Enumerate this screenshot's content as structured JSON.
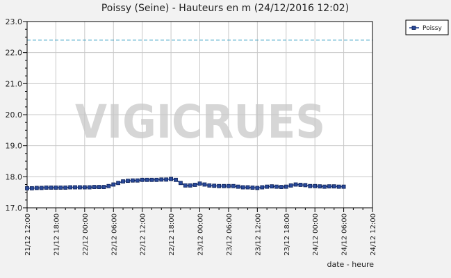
{
  "chart_data": {
    "type": "line",
    "title": "Poissy (Seine) - Hauteurs en m (24/12/2016 12:02)",
    "xlabel": "date - heure",
    "ylabel": "",
    "ylim": [
      17.0,
      23.0
    ],
    "yticks": [
      "17.0",
      "18.0",
      "19.0",
      "20.0",
      "21.0",
      "22.0",
      "23.0"
    ],
    "xlim": [
      "21/12 12:00",
      "24/12 12:00"
    ],
    "xticks": [
      "21/12 12:00",
      "21/12 18:00",
      "22/12 00:00",
      "22/12 06:00",
      "22/12 12:00",
      "22/12 18:00",
      "23/12 00:00",
      "23/12 06:00",
      "23/12 12:00",
      "23/12 18:00",
      "24/12 00:00",
      "24/12 06:00",
      "24/12 12:00"
    ],
    "grid": true,
    "legend_position": "top-right",
    "series": [
      {
        "name": "Poissy",
        "color": "#1a3a8a",
        "x": [
          "21/12 12:00",
          "21/12 13:00",
          "21/12 14:00",
          "21/12 15:00",
          "21/12 16:00",
          "21/12 17:00",
          "21/12 18:00",
          "21/12 19:00",
          "21/12 20:00",
          "21/12 21:00",
          "21/12 22:00",
          "21/12 23:00",
          "22/12 00:00",
          "22/12 01:00",
          "22/12 02:00",
          "22/12 03:00",
          "22/12 04:00",
          "22/12 05:00",
          "22/12 06:00",
          "22/12 07:00",
          "22/12 08:00",
          "22/12 09:00",
          "22/12 10:00",
          "22/12 11:00",
          "22/12 12:00",
          "22/12 13:00",
          "22/12 14:00",
          "22/12 15:00",
          "22/12 16:00",
          "22/12 17:00",
          "22/12 18:00",
          "22/12 19:00",
          "22/12 20:00",
          "22/12 21:00",
          "22/12 22:00",
          "22/12 23:00",
          "23/12 00:00",
          "23/12 01:00",
          "23/12 02:00",
          "23/12 03:00",
          "23/12 04:00",
          "23/12 05:00",
          "23/12 06:00",
          "23/12 07:00",
          "23/12 08:00",
          "23/12 09:00",
          "23/12 10:00",
          "23/12 11:00",
          "23/12 12:00",
          "23/12 13:00",
          "23/12 14:00",
          "23/12 15:00",
          "23/12 16:00",
          "23/12 17:00",
          "23/12 18:00",
          "23/12 19:00",
          "23/12 20:00",
          "23/12 21:00",
          "23/12 22:00",
          "23/12 23:00",
          "24/12 00:00",
          "24/12 01:00",
          "24/12 02:00",
          "24/12 03:00",
          "24/12 04:00",
          "24/12 05:00",
          "24/12 06:00"
        ],
        "values": [
          17.63,
          17.63,
          17.64,
          17.64,
          17.65,
          17.65,
          17.65,
          17.65,
          17.65,
          17.66,
          17.66,
          17.66,
          17.66,
          17.66,
          17.67,
          17.67,
          17.67,
          17.7,
          17.75,
          17.8,
          17.85,
          17.87,
          17.88,
          17.88,
          17.9,
          17.9,
          17.9,
          17.9,
          17.91,
          17.91,
          17.93,
          17.9,
          17.8,
          17.72,
          17.72,
          17.74,
          17.78,
          17.75,
          17.72,
          17.71,
          17.7,
          17.7,
          17.7,
          17.7,
          17.68,
          17.66,
          17.66,
          17.65,
          17.64,
          17.66,
          17.68,
          17.69,
          17.68,
          17.67,
          17.68,
          17.72,
          17.75,
          17.74,
          17.73,
          17.7,
          17.7,
          17.69,
          17.68,
          17.69,
          17.69,
          17.68,
          17.68
        ]
      }
    ],
    "threshold": {
      "value": 22.4,
      "color": "#2a9ac0",
      "style": "dashed"
    },
    "watermark": "VIGICRUES"
  }
}
